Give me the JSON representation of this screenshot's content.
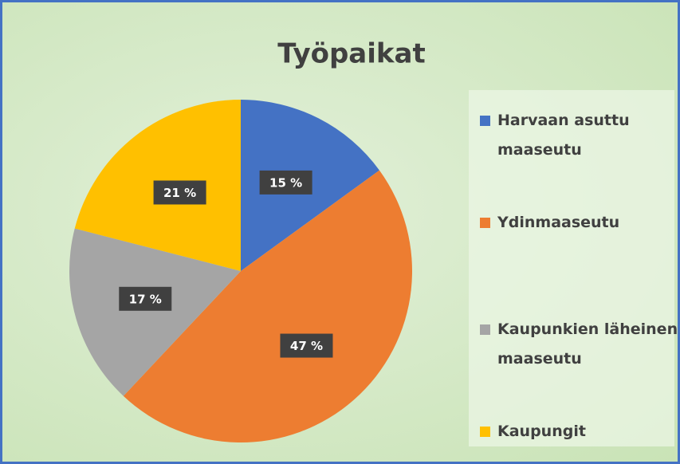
{
  "chart_data": {
    "type": "pie",
    "title": "Työpaikat",
    "categories": [
      "Harvaan asuttu maaseutu",
      "Ydinmaaseutu",
      "Kaupunkien läheinen maaseutu",
      "Kaupungit"
    ],
    "values": [
      15,
      47,
      17,
      21
    ],
    "value_labels": [
      "15 %",
      "47 %",
      "17 %",
      "21 %"
    ],
    "colors": [
      "#4472c4",
      "#ed7d31",
      "#a5a5a5",
      "#ffc000"
    ],
    "legend": "right"
  }
}
